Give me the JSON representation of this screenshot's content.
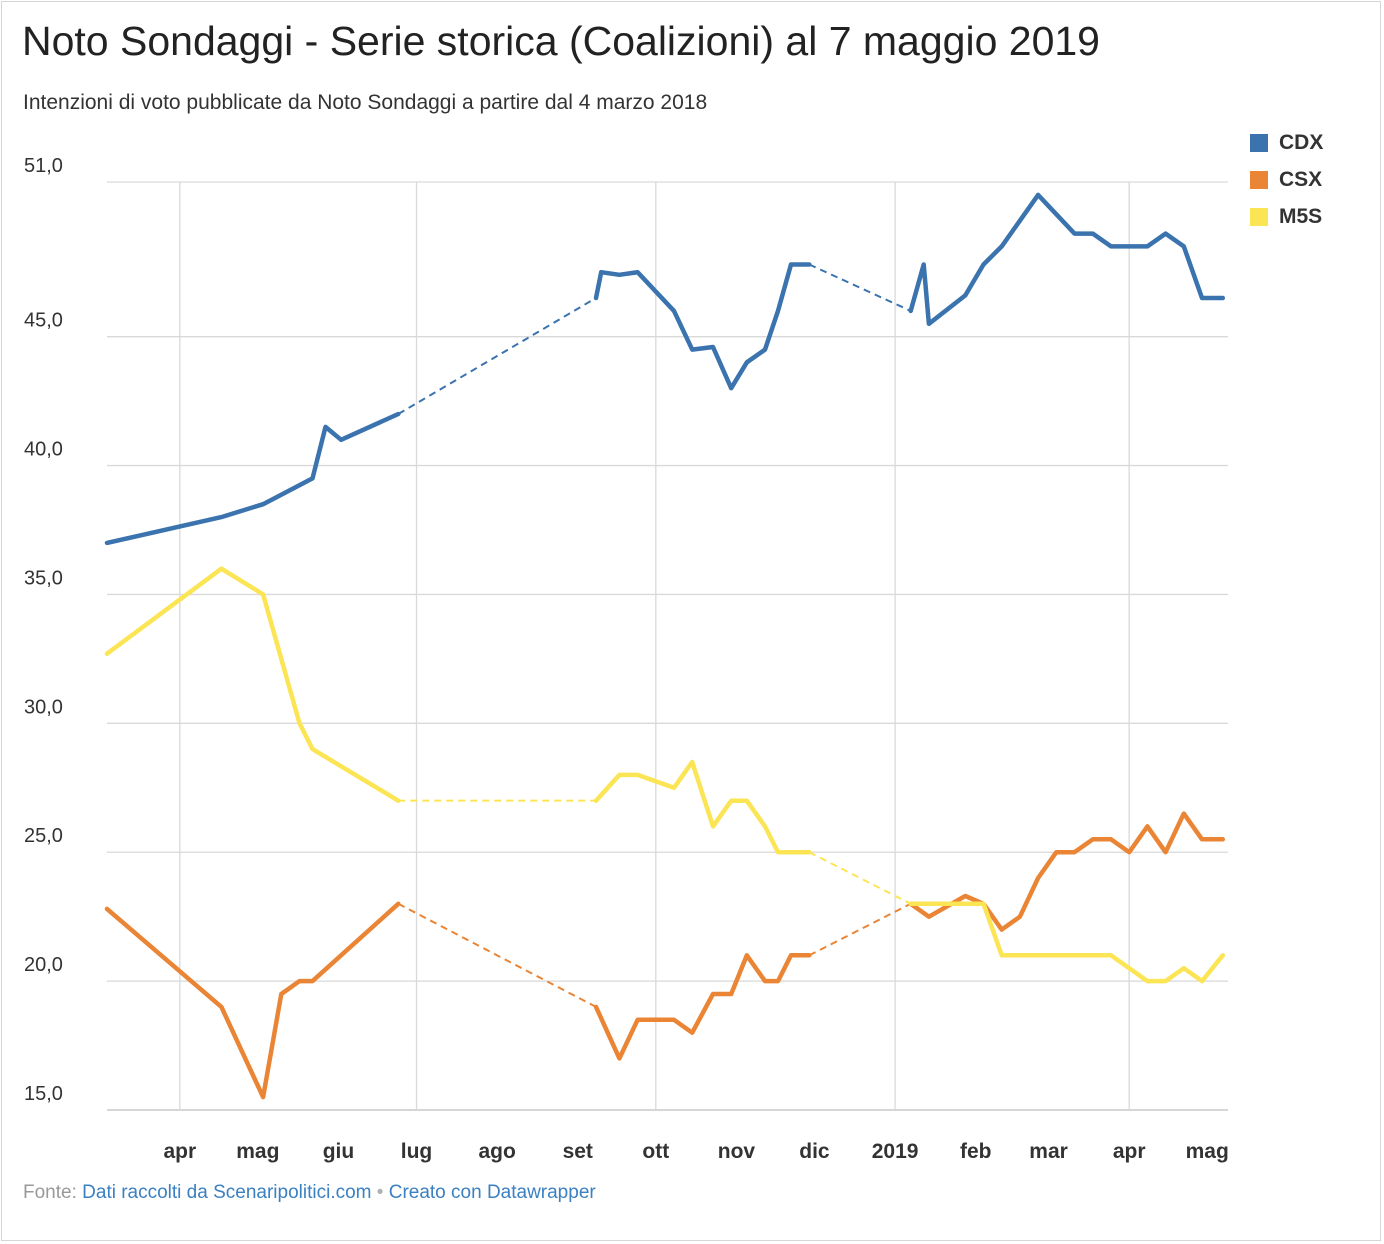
{
  "header": {
    "title": "Noto Sondaggi - Serie storica (Coalizioni) al 7 maggio 2019",
    "subtitle": "Intenzioni di voto pubblicate da Noto Sondaggi a partire dal 4 marzo 2018"
  },
  "footer": {
    "source_prefix": "Fonte:",
    "source_link": "Dati raccolti da Scenaripolitici.com",
    "separator": "•",
    "credit_link": "Creato con Datawrapper"
  },
  "colors": {
    "CDX": "#3a73ae",
    "CSX": "#ea8535",
    "M5S": "#fbe555",
    "grid": "#d9d9d9",
    "axis_text": "#333333"
  },
  "chart_data": {
    "type": "line",
    "title": "Noto Sondaggi - Serie storica (Coalizioni) al 7 maggio 2019",
    "subtitle": "Intenzioni di voto pubblicate da Noto Sondaggi a partire dal 4 marzo 2018",
    "xlabel": "",
    "ylabel": "",
    "xlim": [
      "2018-03-04",
      "2019-05-09"
    ],
    "ylim": [
      15.0,
      51.0
    ],
    "y_ticks": [
      "51,0",
      "45,0",
      "40,0",
      "35,0",
      "30,0",
      "25,0",
      "20,0",
      "15,0"
    ],
    "y_tick_values": [
      51,
      45,
      40,
      35,
      30,
      25,
      20,
      15
    ],
    "x_ticks": [
      {
        "label": "apr",
        "date": "2018-04-01"
      },
      {
        "label": "mag",
        "date": "2018-05-01"
      },
      {
        "label": "giu",
        "date": "2018-06-01"
      },
      {
        "label": "lug",
        "date": "2018-07-01"
      },
      {
        "label": "ago",
        "date": "2018-08-01"
      },
      {
        "label": "set",
        "date": "2018-09-01"
      },
      {
        "label": "ott",
        "date": "2018-10-01"
      },
      {
        "label": "nov",
        "date": "2018-11-01"
      },
      {
        "label": "dic",
        "date": "2018-12-01"
      },
      {
        "label": "2019",
        "date": "2019-01-01"
      },
      {
        "label": "feb",
        "date": "2019-02-01"
      },
      {
        "label": "mar",
        "date": "2019-03-01"
      },
      {
        "label": "apr",
        "date": "2019-04-01"
      },
      {
        "label": "mag",
        "date": "2019-05-01"
      }
    ],
    "vertical_gridlines": [
      "2018-04-01",
      "2018-07-01",
      "2018-10-01",
      "2019-01-01",
      "2019-04-01"
    ],
    "grid": true,
    "legend": {
      "position": "top-right",
      "entries": [
        "CDX",
        "CSX",
        "M5S"
      ]
    },
    "gaps_drawn_dashed": [
      [
        "2018-06-24",
        "2018-09-08"
      ],
      [
        "2018-11-29",
        "2019-01-07"
      ]
    ],
    "series": [
      {
        "name": "CDX",
        "x": [
          "2018-03-04",
          "2018-04-17",
          "2018-05-03",
          "2018-05-22",
          "2018-05-27",
          "2018-06-02",
          "2018-06-24",
          "2018-09-08",
          "2018-09-10",
          "2018-09-17",
          "2018-09-24",
          "2018-10-08",
          "2018-10-15",
          "2018-10-23",
          "2018-10-30",
          "2018-11-05",
          "2018-11-12",
          "2018-11-17",
          "2018-11-22",
          "2018-11-29",
          "2019-01-07",
          "2019-01-12",
          "2019-01-14",
          "2019-01-28",
          "2019-02-04",
          "2019-02-11",
          "2019-02-25",
          "2019-03-11",
          "2019-03-18",
          "2019-03-25",
          "2019-04-01",
          "2019-04-08",
          "2019-04-15",
          "2019-04-22",
          "2019-04-29",
          "2019-05-07"
        ],
        "values": [
          37.0,
          38.0,
          38.5,
          39.5,
          41.5,
          41.0,
          42.0,
          46.5,
          47.5,
          47.4,
          47.5,
          46.0,
          44.5,
          44.6,
          43.0,
          44.0,
          44.5,
          46.0,
          47.8,
          47.8,
          46.0,
          47.8,
          45.5,
          46.6,
          47.8,
          48.5,
          50.5,
          49.0,
          49.0,
          48.5,
          48.5,
          48.5,
          49.0,
          48.5,
          46.5,
          46.5
        ]
      },
      {
        "name": "CSX",
        "x": [
          "2018-03-04",
          "2018-04-17",
          "2018-05-03",
          "2018-05-10",
          "2018-05-17",
          "2018-05-22",
          "2018-06-24",
          "2018-09-08",
          "2018-09-17",
          "2018-09-24",
          "2018-10-08",
          "2018-10-15",
          "2018-10-23",
          "2018-10-30",
          "2018-11-05",
          "2018-11-12",
          "2018-11-17",
          "2018-11-22",
          "2018-11-29",
          "2019-01-07",
          "2019-01-14",
          "2019-01-28",
          "2019-02-04",
          "2019-02-11",
          "2019-02-18",
          "2019-02-25",
          "2019-03-04",
          "2019-03-11",
          "2019-03-18",
          "2019-03-25",
          "2019-04-01",
          "2019-04-08",
          "2019-04-15",
          "2019-04-22",
          "2019-04-29",
          "2019-05-07"
        ],
        "values": [
          22.8,
          19.0,
          15.5,
          19.5,
          20.0,
          20.0,
          23.0,
          19.0,
          17.0,
          18.5,
          18.5,
          18.0,
          19.5,
          19.5,
          21.0,
          20.0,
          20.0,
          21.0,
          21.0,
          23.0,
          22.5,
          23.3,
          23.0,
          22.0,
          22.5,
          24.0,
          25.0,
          25.0,
          25.5,
          25.5,
          25.0,
          26.0,
          25.0,
          26.5,
          25.5,
          25.5
        ]
      },
      {
        "name": "M5S",
        "x": [
          "2018-03-04",
          "2018-04-17",
          "2018-05-03",
          "2018-05-10",
          "2018-05-17",
          "2018-05-22",
          "2018-06-24",
          "2018-09-08",
          "2018-09-17",
          "2018-09-24",
          "2018-10-08",
          "2018-10-15",
          "2018-10-23",
          "2018-10-30",
          "2018-11-05",
          "2018-11-12",
          "2018-11-17",
          "2018-11-22",
          "2018-11-29",
          "2019-01-07",
          "2019-01-28",
          "2019-02-04",
          "2019-02-11",
          "2019-02-18",
          "2019-03-11",
          "2019-03-18",
          "2019-03-25",
          "2019-04-01",
          "2019-04-08",
          "2019-04-15",
          "2019-04-22",
          "2019-04-29",
          "2019-05-07"
        ],
        "values": [
          32.7,
          36.0,
          35.0,
          32.5,
          30.0,
          29.0,
          27.0,
          27.0,
          28.0,
          28.0,
          27.5,
          28.5,
          26.0,
          27.0,
          27.0,
          26.0,
          25.0,
          25.0,
          25.0,
          23.0,
          23.0,
          23.0,
          21.0,
          21.0,
          21.0,
          21.0,
          21.0,
          20.5,
          20.0,
          20.0,
          20.5,
          20.0,
          21.0
        ]
      }
    ]
  }
}
